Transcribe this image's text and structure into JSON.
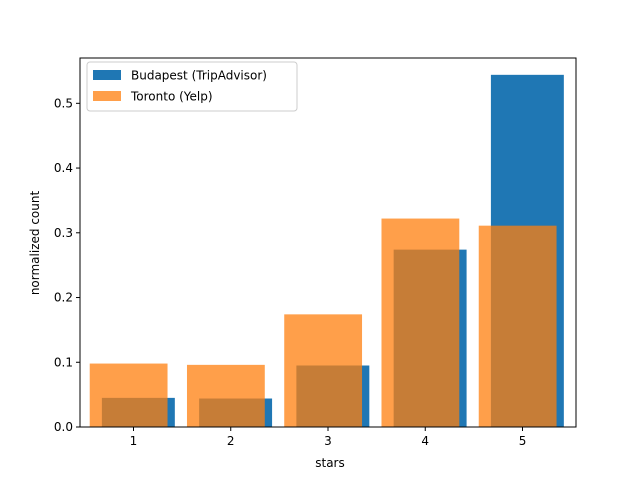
{
  "chart_data": {
    "type": "bar",
    "categories": [
      "1",
      "2",
      "3",
      "4",
      "5"
    ],
    "x": [
      1,
      2,
      3,
      4,
      5
    ],
    "xlabel": "stars",
    "ylabel": "normalized count",
    "ylim": [
      0,
      0.57
    ],
    "xlim": [
      0.45,
      5.55
    ],
    "y_ticks": [
      0.0,
      0.1,
      0.2,
      0.3,
      0.4,
      0.5
    ],
    "y_tick_labels": [
      "0.0",
      "0.1",
      "0.2",
      "0.3",
      "0.4",
      "0.5"
    ],
    "grid": false,
    "legend_position": "top-left",
    "series": [
      {
        "name": "Budapest (TripAdvisor)",
        "color": "#1f77b4",
        "opacity": 1.0,
        "values": [
          0.045,
          0.044,
          0.095,
          0.274,
          0.544
        ]
      },
      {
        "name": "Toronto (Yelp)",
        "color": "#ff7f0e",
        "opacity": 0.75,
        "values": [
          0.098,
          0.096,
          0.174,
          0.322,
          0.311
        ]
      }
    ]
  }
}
